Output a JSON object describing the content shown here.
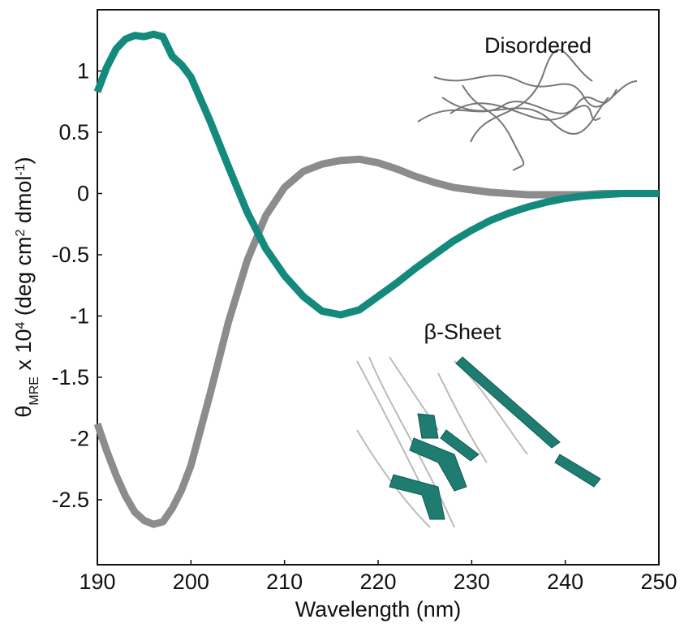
{
  "chart_data": {
    "type": "line",
    "x_label": "Wavelength (nm)",
    "y_label": [
      "θ",
      "MRE",
      " x 10",
      "4",
      " (deg cm",
      "2",
      " dmol",
      "-1",
      ")"
    ],
    "x": [
      190,
      191,
      192,
      193,
      194,
      195,
      196,
      197,
      198,
      199,
      200,
      202,
      204,
      206,
      208,
      210,
      212,
      214,
      216,
      218,
      220,
      222,
      224,
      226,
      228,
      230,
      232,
      234,
      236,
      238,
      240,
      242,
      244,
      246,
      248,
      250
    ],
    "series": [
      {
        "name": "Disordered",
        "color": "#8c8c8e",
        "values": [
          -1.88,
          -2.1,
          -2.3,
          -2.47,
          -2.6,
          -2.67,
          -2.7,
          -2.68,
          -2.57,
          -2.42,
          -2.22,
          -1.65,
          -1.05,
          -0.55,
          -0.18,
          0.05,
          0.18,
          0.24,
          0.27,
          0.28,
          0.25,
          0.2,
          0.14,
          0.09,
          0.05,
          0.03,
          0.01,
          0,
          -0.01,
          -0.01,
          -0.01,
          -0.01,
          0,
          0,
          0,
          0
        ]
      },
      {
        "name": "β-Sheet",
        "color": "#138a7c",
        "values": [
          0.83,
          1.03,
          1.18,
          1.26,
          1.29,
          1.28,
          1.3,
          1.28,
          1.12,
          1.05,
          0.95,
          0.6,
          0.22,
          -0.15,
          -0.45,
          -0.67,
          -0.84,
          -0.96,
          -0.99,
          -0.95,
          -0.84,
          -0.73,
          -0.61,
          -0.5,
          -0.39,
          -0.3,
          -0.22,
          -0.16,
          -0.11,
          -0.07,
          -0.04,
          -0.02,
          -0.01,
          0,
          0,
          0
        ]
      }
    ],
    "xlim": [
      190,
      250
    ],
    "xticks": [
      190,
      200,
      210,
      220,
      230,
      240,
      250
    ],
    "ylim": [
      -3.03,
      1.5
    ],
    "yticks": [
      1,
      0.5,
      0,
      -0.5,
      -1,
      -1.5,
      -2,
      -2.5
    ]
  }
}
